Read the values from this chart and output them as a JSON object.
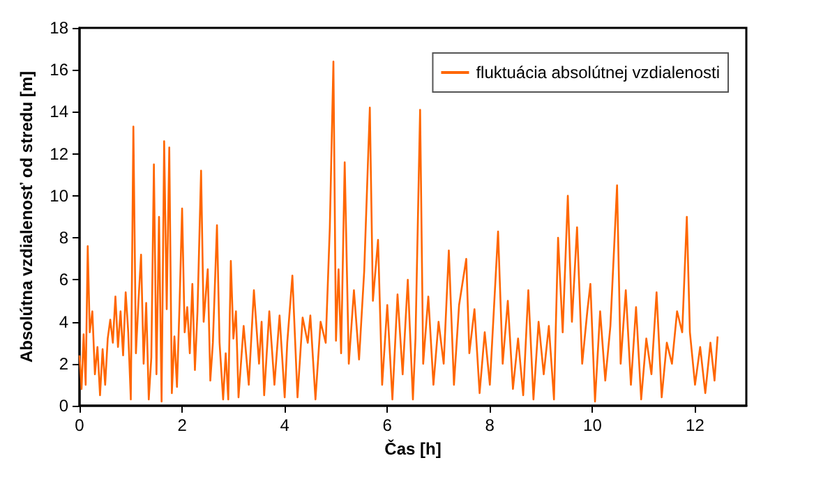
{
  "chart_data": {
    "type": "line",
    "xlabel": "Čas [h]",
    "ylabel": "Absolútna vzdialenosť od stredu [m]",
    "xlim": [
      0,
      13
    ],
    "xticks": [
      0,
      2,
      4,
      6,
      8,
      10,
      12
    ],
    "ylim": [
      0,
      18
    ],
    "yticks": [
      0,
      2,
      4,
      6,
      8,
      10,
      12,
      14,
      16,
      18
    ],
    "grid": false,
    "legend": "top right",
    "marker": "none",
    "line_style": "solid",
    "series": [
      {
        "name": "fluktuácia absolútnej vzdialenosti",
        "color": "#ff6600",
        "x": [
          0,
          0.04,
          0.08,
          0.12,
          0.16,
          0.2,
          0.25,
          0.3,
          0.35,
          0.4,
          0.45,
          0.5,
          0.55,
          0.6,
          0.65,
          0.7,
          0.75,
          0.8,
          0.85,
          0.9,
          0.95,
          1.0,
          1.05,
          1.1,
          1.15,
          1.2,
          1.25,
          1.3,
          1.35,
          1.4,
          1.45,
          1.5,
          1.55,
          1.6,
          1.65,
          1.7,
          1.75,
          1.8,
          1.85,
          1.9,
          1.95,
          2.0,
          2.05,
          2.1,
          2.15,
          2.2,
          2.25,
          2.3,
          2.37,
          2.42,
          2.5,
          2.55,
          2.6,
          2.68,
          2.73,
          2.8,
          2.85,
          2.9,
          2.95,
          3.0,
          3.05,
          3.1,
          3.2,
          3.3,
          3.4,
          3.5,
          3.55,
          3.6,
          3.7,
          3.8,
          3.9,
          4.0,
          4.05,
          4.15,
          4.25,
          4.35,
          4.45,
          4.5,
          4.6,
          4.7,
          4.8,
          4.88,
          4.95,
          5.0,
          5.05,
          5.1,
          5.17,
          5.25,
          5.35,
          5.45,
          5.55,
          5.66,
          5.72,
          5.82,
          5.9,
          6.0,
          6.1,
          6.2,
          6.3,
          6.4,
          6.5,
          6.55,
          6.64,
          6.7,
          6.8,
          6.9,
          7.0,
          7.1,
          7.2,
          7.3,
          7.4,
          7.54,
          7.6,
          7.7,
          7.8,
          7.9,
          8.0,
          8.16,
          8.25,
          8.35,
          8.45,
          8.55,
          8.65,
          8.75,
          8.85,
          8.95,
          9.05,
          9.15,
          9.25,
          9.33,
          9.42,
          9.52,
          9.6,
          9.7,
          9.8,
          9.9,
          9.96,
          10.05,
          10.15,
          10.25,
          10.35,
          10.48,
          10.55,
          10.65,
          10.75,
          10.85,
          10.95,
          11.05,
          11.15,
          11.25,
          11.35,
          11.45,
          11.55,
          11.65,
          11.75,
          11.84,
          11.9,
          12.0,
          12.1,
          12.2,
          12.3,
          12.38,
          12.44
        ],
        "values": [
          2.4,
          0.8,
          3.4,
          1.0,
          7.6,
          3.5,
          4.5,
          1.5,
          2.8,
          0.5,
          2.7,
          1.0,
          3.2,
          4.1,
          3.0,
          5.2,
          2.8,
          4.5,
          2.4,
          5.4,
          3.5,
          0.3,
          13.3,
          2.5,
          5.0,
          7.2,
          2.0,
          4.9,
          0.3,
          2.3,
          11.5,
          1.5,
          9.0,
          0.2,
          12.6,
          4.6,
          12.3,
          0.6,
          3.3,
          0.9,
          4.8,
          9.4,
          3.5,
          4.7,
          2.5,
          5.8,
          1.7,
          4.5,
          11.2,
          4.0,
          6.5,
          1.2,
          3.0,
          8.6,
          3.0,
          0.3,
          2.5,
          0.3,
          6.9,
          3.2,
          4.5,
          0.4,
          3.8,
          1.0,
          5.5,
          2.0,
          4.0,
          0.5,
          4.5,
          1.0,
          4.3,
          0.4,
          3.0,
          6.2,
          0.4,
          4.2,
          3.0,
          4.3,
          0.3,
          4.0,
          3.0,
          8.5,
          16.4,
          3.1,
          6.5,
          2.5,
          11.6,
          2.0,
          5.5,
          2.2,
          6.4,
          14.2,
          5.0,
          7.9,
          1.0,
          4.8,
          0.3,
          5.3,
          1.5,
          6.0,
          0.3,
          3.2,
          14.1,
          2.0,
          5.2,
          1.0,
          4.0,
          2.0,
          7.4,
          1.0,
          4.8,
          7.0,
          2.5,
          4.6,
          0.6,
          3.5,
          1.0,
          8.3,
          2.0,
          5.0,
          0.8,
          3.2,
          0.5,
          5.5,
          0.3,
          4.0,
          1.5,
          3.8,
          0.3,
          8.0,
          3.5,
          10.0,
          4.0,
          8.5,
          2.0,
          4.5,
          5.8,
          0.2,
          4.5,
          1.2,
          3.8,
          10.5,
          2.0,
          5.5,
          1.0,
          4.7,
          0.3,
          3.2,
          1.5,
          5.4,
          0.4,
          3.0,
          2.0,
          4.5,
          3.5,
          9.0,
          3.5,
          1.0,
          2.8,
          0.6,
          3.0,
          1.2,
          3.3
        ]
      }
    ]
  }
}
